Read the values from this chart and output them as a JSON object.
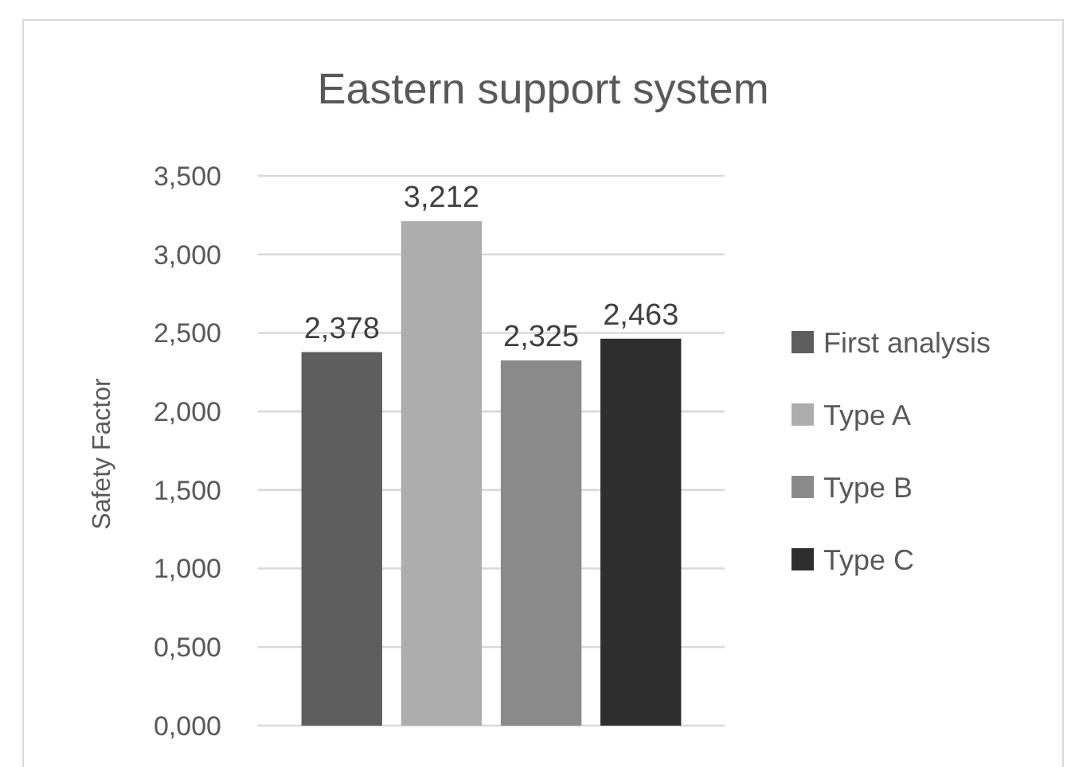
{
  "chart_data": {
    "type": "bar",
    "title": "Eastern support system",
    "ylabel": "Safety Factor",
    "categories": [
      null
    ],
    "series": [
      {
        "name": "First analysis",
        "color": "#5e5e5e",
        "values": [
          2.378
        ],
        "value_labels": [
          "2,378"
        ]
      },
      {
        "name": "Type A",
        "color": "#adadad",
        "values": [
          3.212
        ],
        "value_labels": [
          "3,212"
        ]
      },
      {
        "name": "Type B",
        "color": "#8a8a8a",
        "values": [
          2.325
        ],
        "value_labels": [
          "2,325"
        ]
      },
      {
        "name": "Type C",
        "color": "#2e2e2e",
        "values": [
          2.463
        ],
        "value_labels": [
          "2,463"
        ]
      }
    ],
    "ylim": [
      0,
      3.5
    ],
    "yticks": [
      {
        "value": 0,
        "label": "0,000"
      },
      {
        "value": 0.5,
        "label": "0,500"
      },
      {
        "value": 1,
        "label": "1,000"
      },
      {
        "value": 1.5,
        "label": "1,500"
      },
      {
        "value": 2,
        "label": "2,000"
      },
      {
        "value": 2.5,
        "label": "2,500"
      },
      {
        "value": 3,
        "label": "3,000"
      },
      {
        "value": 3.5,
        "label": "3,500"
      }
    ],
    "grid": "y",
    "legend": "right"
  }
}
